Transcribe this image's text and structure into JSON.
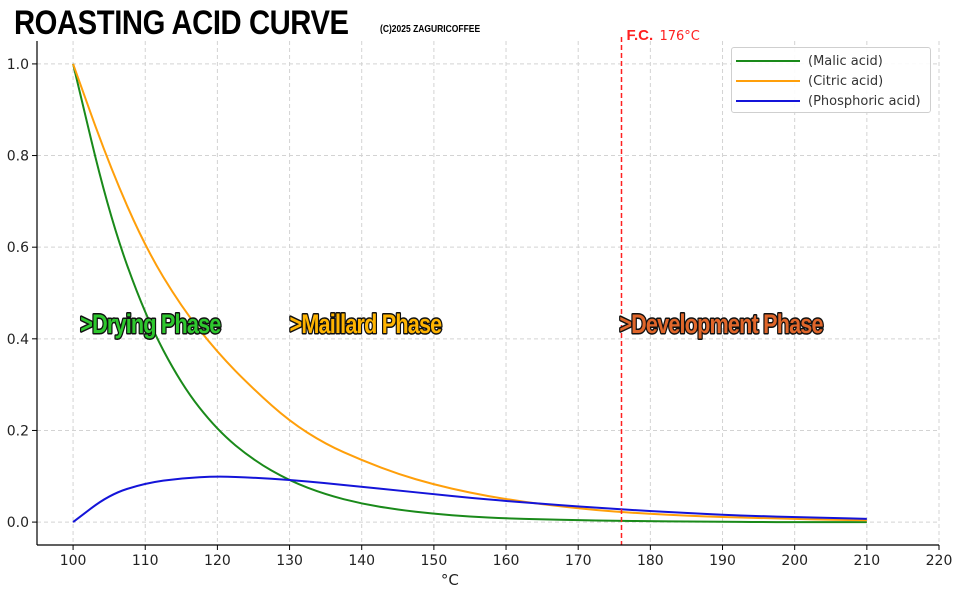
{
  "title": "ROASTING ACID CURVE",
  "subtitle": "(C)2025 ZAGURICOFFEE",
  "legend": [
    {
      "label": "(Malic acid)",
      "color": "#1a8a1a"
    },
    {
      "label": "(Citric acid)",
      "color": "#ff9f0a"
    },
    {
      "label": "(Phosphoric acid)",
      "color": "#1414d9"
    }
  ],
  "chart_data": {
    "type": "line",
    "title": "ROASTING ACID CURVE",
    "subtitle": "(C)2025 ZAGURICOFFEE",
    "xlabel": "°C",
    "ylabel": "",
    "xlim": [
      95,
      220
    ],
    "ylim": [
      -0.05,
      1.05
    ],
    "x_ticks": [
      100,
      110,
      120,
      130,
      140,
      150,
      160,
      170,
      180,
      190,
      200,
      210,
      220
    ],
    "y_ticks": [
      0.0,
      0.2,
      0.4,
      0.6,
      0.8,
      1.0
    ],
    "x_tick_labels": [
      "100",
      "110",
      "120",
      "130",
      "140",
      "150",
      "160",
      "170",
      "180",
      "190",
      "200",
      "210",
      "220"
    ],
    "y_tick_labels": [
      "0.0",
      "0.2",
      "0.4",
      "0.6",
      "0.8",
      "1.0"
    ],
    "grid": true,
    "legend_position": "top-right",
    "x": [
      100,
      105,
      110,
      115,
      120,
      125,
      130,
      135,
      140,
      145,
      150,
      155,
      160,
      165,
      170,
      175,
      180,
      185,
      190,
      195,
      200,
      205,
      210
    ],
    "series": [
      {
        "name": "(Malic acid)",
        "color": "#1a8a1a",
        "values": [
          1.0,
          0.67,
          0.45,
          0.3,
          0.2,
          0.135,
          0.09,
          0.06,
          0.04,
          0.027,
          0.018,
          0.012,
          0.008,
          0.006,
          0.004,
          0.003,
          0.002,
          0.001,
          0.001,
          0.0,
          0.0,
          0.0,
          0.0
        ]
      },
      {
        "name": "(Citric acid)",
        "color": "#ff9f0a",
        "values": [
          1.0,
          0.78,
          0.6,
          0.47,
          0.37,
          0.29,
          0.22,
          0.17,
          0.135,
          0.105,
          0.082,
          0.064,
          0.05,
          0.039,
          0.03,
          0.023,
          0.018,
          0.014,
          0.011,
          0.009,
          0.007,
          0.005,
          0.004
        ]
      },
      {
        "name": "(Phosphoric acid)",
        "color": "#1414d9",
        "values": [
          0.0,
          0.06,
          0.085,
          0.096,
          0.1,
          0.097,
          0.092,
          0.085,
          0.077,
          0.069,
          0.061,
          0.053,
          0.046,
          0.04,
          0.034,
          0.029,
          0.024,
          0.02,
          0.016,
          0.013,
          0.011,
          0.009,
          0.007
        ]
      }
    ],
    "vline": {
      "x": 176,
      "color": "#ff2020",
      "label_main": "F.C.",
      "label_value": "176°C"
    },
    "annotations": [
      {
        "text": ">Drying Phase",
        "x": 101,
        "y": 0.43,
        "color": "#2ec82e"
      },
      {
        "text": ">Maillard Phase",
        "x": 130,
        "y": 0.43,
        "color": "#ffb400"
      },
      {
        "text": ">Development Phase",
        "x": 175.7,
        "y": 0.43,
        "color": "#e0662a"
      }
    ]
  }
}
